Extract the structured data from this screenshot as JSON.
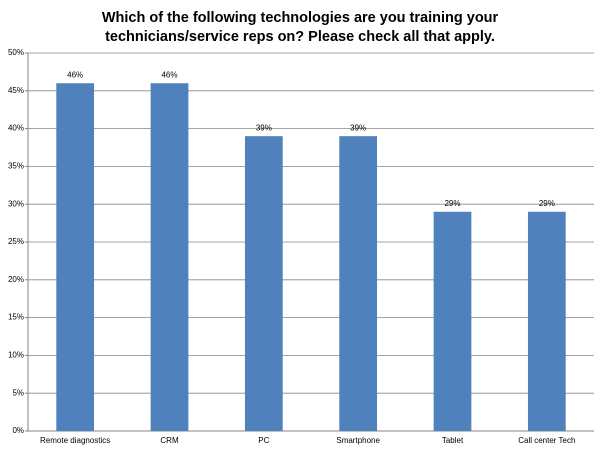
{
  "chart_data": {
    "type": "bar",
    "title": [
      "Which of the following technologies are you training your",
      "technicians/service reps on? Please check all that apply."
    ],
    "categories": [
      "Remote diagnostics",
      "CRM",
      "PC",
      "Smartphone",
      "Tablet",
      "Call center Tech"
    ],
    "values": [
      46,
      46,
      39,
      39,
      29,
      29
    ],
    "value_labels": [
      "46%",
      "46%",
      "39%",
      "39%",
      "29%",
      "29%"
    ],
    "color": "#4f81bd",
    "ylim": [
      0,
      50
    ],
    "yticks": [
      {
        "value": 0,
        "label": "0%"
      },
      {
        "value": 5,
        "label": "5%"
      },
      {
        "value": 10,
        "label": "10%"
      },
      {
        "value": 15,
        "label": "15%"
      },
      {
        "value": 20,
        "label": "20%"
      },
      {
        "value": 25,
        "label": "25%"
      },
      {
        "value": 30,
        "label": "30%"
      },
      {
        "value": 35,
        "label": "35%"
      },
      {
        "value": 40,
        "label": "40%"
      },
      {
        "value": 45,
        "label": "45%"
      },
      {
        "value": 50,
        "label": "50%"
      }
    ],
    "grid": true
  }
}
